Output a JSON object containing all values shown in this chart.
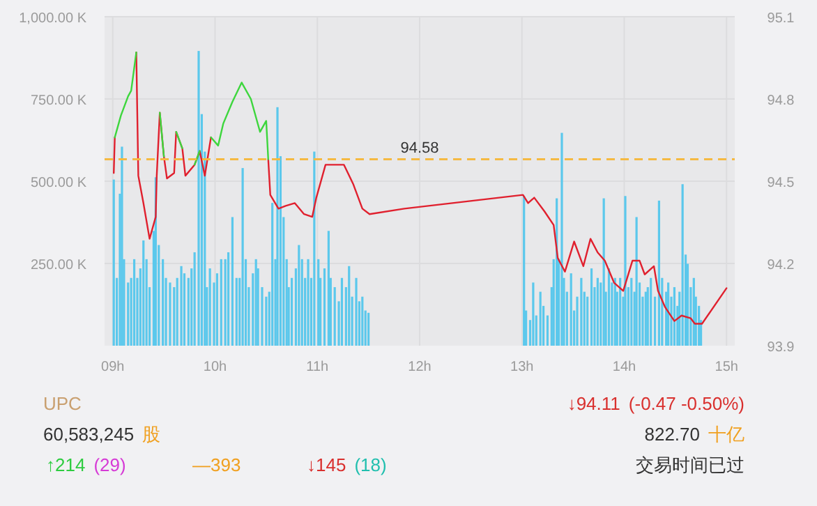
{
  "chart_data": [
    {
      "type": "bar",
      "xlim": [
        8.92,
        15.08
      ],
      "xticks": [
        {
          "value": 9,
          "label": "09h"
        },
        {
          "value": 10,
          "label": "10h"
        },
        {
          "value": 11,
          "label": "11h"
        },
        {
          "value": 12,
          "label": "12h"
        },
        {
          "value": 13,
          "label": "13h"
        },
        {
          "value": 14,
          "label": "14h"
        },
        {
          "value": 15,
          "label": "15h"
        }
      ],
      "ylim": [
        0,
        1000
      ],
      "yticks": [
        {
          "value": 250,
          "label": "250.00 K"
        },
        {
          "value": 500,
          "label": "500.00 K"
        },
        {
          "value": 750,
          "label": "750.00 K"
        },
        {
          "value": 1000,
          "label": "1,000.00 K"
        }
      ],
      "y2lim": [
        93.9,
        95.1
      ],
      "y2ticks": [
        93.9,
        94.2,
        94.5,
        94.8,
        95.1
      ],
      "grid": true,
      "series": [
        {
          "type": "bar",
          "color": "#5bc8ec",
          "x": [
            9.01,
            9.04,
            9.07,
            9.09,
            9.11,
            9.15,
            9.18,
            9.21,
            9.24,
            9.27,
            9.3,
            9.33,
            9.36,
            9.4,
            9.42,
            9.45,
            9.49,
            9.52,
            9.56,
            9.6,
            9.63,
            9.67,
            9.7,
            9.74,
            9.77,
            9.8,
            9.84,
            9.87,
            9.9,
            9.92,
            9.95,
            9.99,
            10.02,
            10.06,
            10.1,
            10.13,
            10.17,
            10.21,
            10.24,
            10.27,
            10.3,
            10.33,
            10.37,
            10.4,
            10.42,
            10.46,
            10.5,
            10.53,
            10.56,
            10.59,
            10.61,
            10.64,
            10.67,
            10.7,
            10.72,
            10.75,
            10.79,
            10.82,
            10.85,
            10.88,
            10.91,
            10.94,
            10.97,
            11.01,
            11.03,
            11.07,
            11.11,
            11.13,
            11.17,
            11.21,
            11.24,
            11.28,
            11.31,
            11.34,
            11.38,
            11.41,
            11.44,
            11.47,
            11.5,
            13.02,
            13.04,
            13.08,
            13.11,
            13.14,
            13.18,
            13.21,
            13.25,
            13.29,
            13.31,
            13.34,
            13.36,
            13.39,
            13.41,
            13.44,
            13.48,
            13.51,
            13.54,
            13.58,
            13.61,
            13.64,
            13.68,
            13.71,
            13.74,
            13.77,
            13.8,
            13.82,
            13.85,
            13.88,
            13.91,
            13.93,
            13.96,
            13.99,
            14.01,
            14.04,
            14.07,
            14.1,
            14.12,
            14.15,
            14.18,
            14.21,
            14.23,
            14.26,
            14.3,
            14.34,
            14.37,
            14.41,
            14.43,
            14.46,
            14.49,
            14.52,
            14.54,
            14.57,
            14.6,
            14.62,
            14.65,
            14.68,
            14.7,
            14.73,
            14.75
          ],
          "values": [
            505,
            206,
            462,
            605,
            263,
            192,
            206,
            263,
            206,
            235,
            320,
            263,
            178,
            349,
            512,
            306,
            263,
            206,
            192,
            178,
            206,
            242,
            220,
            206,
            235,
            284,
            896,
            704,
            590,
            178,
            235,
            192,
            220,
            263,
            263,
            284,
            391,
            206,
            206,
            540,
            263,
            178,
            220,
            263,
            235,
            178,
            149,
            164,
            434,
            263,
            725,
            576,
            391,
            263,
            178,
            206,
            235,
            306,
            263,
            206,
            263,
            206,
            590,
            263,
            206,
            235,
            349,
            206,
            178,
            135,
            206,
            178,
            242,
            149,
            206,
            135,
            149,
            107,
            100,
            455,
            107,
            78,
            192,
            92,
            164,
            121,
            92,
            178,
            263,
            448,
            263,
            647,
            206,
            164,
            220,
            107,
            149,
            206,
            164,
            149,
            235,
            178,
            206,
            192,
            448,
            164,
            235,
            192,
            206,
            164,
            206,
            149,
            455,
            178,
            206,
            164,
            391,
            192,
            149,
            164,
            178,
            206,
            149,
            441,
            206,
            164,
            192,
            149,
            178,
            121,
            164,
            491,
            277,
            249,
            178,
            206,
            149,
            121,
            78
          ]
        },
        {
          "type": "line",
          "axis": "y2",
          "color": "#e0202e",
          "x": [
            9.01,
            9.02,
            9.08,
            9.15,
            9.18,
            9.23,
            9.25,
            9.3,
            9.36,
            9.42,
            9.43,
            9.46,
            9.5,
            9.53,
            9.6,
            9.62,
            9.68,
            9.71,
            9.8,
            9.85,
            9.9,
            9.96,
            10.03,
            10.08,
            10.17,
            10.26,
            10.35,
            10.44,
            10.5,
            10.52,
            10.54,
            10.62,
            10.69,
            10.78,
            10.87,
            10.95,
            10.99,
            11.08,
            11.15,
            11.26,
            11.35,
            11.44,
            11.51,
            11.85,
            13.01,
            13.06,
            13.12,
            13.22,
            13.31,
            13.35,
            13.42,
            13.51,
            13.6,
            13.67,
            13.74,
            13.81,
            13.9,
            13.99,
            14.08,
            14.15,
            14.2,
            14.29,
            14.33,
            14.4,
            14.49,
            14.56,
            14.65,
            14.69,
            14.76,
            15.0
          ],
          "values": [
            94.53,
            94.66,
            null,
            null,
            null,
            94.97,
            94.52,
            94.42,
            94.29,
            94.37,
            94.52,
            94.75,
            94.59,
            94.51,
            94.53,
            94.68,
            94.62,
            94.52,
            94.56,
            94.61,
            94.52,
            94.66,
            null,
            null,
            null,
            null,
            null,
            null,
            null,
            94.58,
            94.45,
            94.4,
            94.41,
            94.42,
            94.38,
            94.37,
            94.44,
            94.56,
            94.56,
            94.56,
            94.49,
            94.4,
            94.38,
            94.4,
            94.45,
            94.42,
            94.44,
            94.39,
            94.34,
            94.22,
            94.17,
            94.28,
            94.19,
            94.29,
            94.24,
            94.21,
            94.13,
            94.1,
            94.21,
            94.21,
            94.16,
            94.19,
            94.1,
            94.04,
            93.99,
            94.01,
            94.0,
            93.98,
            93.98,
            94.11
          ]
        },
        {
          "type": "line",
          "axis": "y2",
          "color": "#3dd63d",
          "x": [
            9.02,
            9.08,
            9.15,
            9.18,
            9.23,
            9.25,
            9.3,
            9.36,
            9.42,
            9.43,
            9.46,
            9.5,
            9.53,
            9.6,
            9.62,
            9.68,
            9.71,
            9.8,
            9.85,
            9.9,
            9.96,
            10.03,
            10.08,
            10.17,
            10.26,
            10.35,
            10.44,
            10.5,
            10.52
          ],
          "values": [
            94.66,
            94.74,
            94.81,
            94.83,
            94.97,
            null,
            null,
            null,
            null,
            null,
            94.75,
            94.59,
            null,
            null,
            94.68,
            94.62,
            null,
            94.56,
            94.61,
            null,
            94.66,
            94.63,
            94.71,
            94.79,
            94.86,
            94.8,
            94.68,
            94.72,
            94.58
          ]
        }
      ],
      "ref_lines": [
        {
          "axis": "y2",
          "value": 94.58,
          "label": "94.58",
          "color": "#f5b942",
          "line_style": "dashed"
        }
      ]
    },
    {
      "type": "other",
      "annotations": [
        "UPC",
        "60,583,245",
        "股",
        "↑214",
        "(29)",
        "—393",
        "↓145",
        "(18)",
        "↓94.11",
        "(-0.47  -0.50%)",
        "822.70",
        "十亿",
        "交易时间已过"
      ]
    }
  ]
}
